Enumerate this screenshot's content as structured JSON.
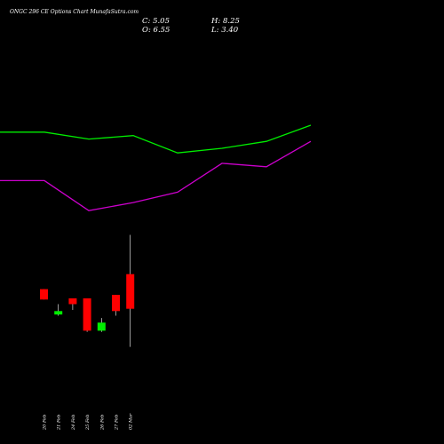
{
  "header": {
    "title": "ONGC 296  CE Options  Chart MunafaSutra.com",
    "close": "C: 5.05",
    "open": "O: 6.55",
    "high": "H: 8.25",
    "low": "L: 3.40"
  },
  "chart_data": {
    "type": "candlestick",
    "dates": [
      "20 Feb",
      "21 Feb",
      "24 Feb",
      "25 Feb",
      "26 Feb",
      "27 Feb",
      "02 Mar"
    ],
    "date_labels": [
      "20 Feb",
      "21 Feb",
      "24 Feb",
      "25 Feb",
      "26 Feb",
      "27 Feb",
      "02 Mar"
    ],
    "candles": [
      {
        "date": "20 Feb",
        "open": 5.9,
        "high": 5.9,
        "low": 5.45,
        "close": 5.45
      },
      {
        "date": "21 Feb",
        "open": 4.8,
        "high": 5.25,
        "low": 4.75,
        "close": 4.95
      },
      {
        "date": "24 Feb",
        "open": 5.5,
        "high": 5.5,
        "low": 5.0,
        "close": 5.25
      },
      {
        "date": "25 Feb",
        "open": 5.5,
        "high": 5.5,
        "low": 4.05,
        "close": 4.1
      },
      {
        "date": "26 Feb",
        "open": 4.1,
        "high": 4.65,
        "low": 4.05,
        "close": 4.45
      },
      {
        "date": "27 Feb",
        "open": 5.65,
        "high": 5.65,
        "low": 4.75,
        "close": 4.95
      },
      {
        "date": "02 Mar",
        "open": 6.55,
        "high": 8.25,
        "low": 3.4,
        "close": 5.05
      }
    ],
    "overlay_series": [
      {
        "color": "#00ee00",
        "values": [
          12.7,
          12.7,
          12.4,
          12.55,
          11.8,
          12.0,
          12.3,
          13.0
        ]
      },
      {
        "color": "#cc00cc",
        "values": [
          10.6,
          10.6,
          9.3,
          9.65,
          10.1,
          11.35,
          11.2,
          12.3
        ]
      }
    ],
    "ylim": [
      1.5,
      16.5
    ],
    "grid": false,
    "colors": {
      "up": "#00ee00",
      "down": "#ff0000",
      "wick": "#ffffff",
      "background": "#000000"
    }
  }
}
